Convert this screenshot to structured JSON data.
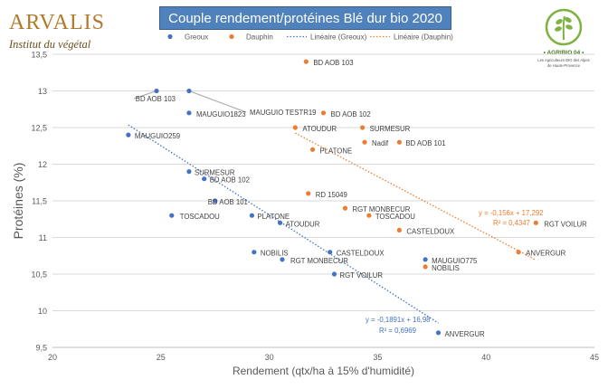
{
  "logo_left": {
    "name": "ARVALIS",
    "subtitle": "Institut du végétal"
  },
  "logo_right": {
    "name": "• AGRIBIO 04 •",
    "line1": "Les Agriculteurs BIO des Alpes",
    "line2": "de Haute-Provence"
  },
  "chart_data": {
    "type": "scatter",
    "title": "Couple rendement/protéines Blé dur bio 2020",
    "xlabel": "Rendement (qtx/ha à 15% d'humidité)",
    "ylabel": "Protéines (%)",
    "xlim": [
      20,
      45
    ],
    "ylim": [
      9.5,
      13.5
    ],
    "xticks": [
      20,
      25,
      30,
      35,
      40,
      45
    ],
    "yticks": [
      9.5,
      10,
      10.5,
      11,
      11.5,
      12,
      12.5,
      13,
      13.5
    ],
    "grid": "horizontal",
    "legend_position": "top",
    "colors": {
      "greoux": "#4472c4",
      "dauphin": "#ed7d31"
    },
    "legend": [
      "Greoux",
      "Dauphin",
      "Linéaire (Greoux)",
      "Linéaire (Dauphin)"
    ],
    "series": [
      {
        "name": "Greoux",
        "points": [
          {
            "label": "BD AOB 103",
            "x": 24.8,
            "y": 13.0
          },
          {
            "label": "MAUGUIO TESTR19",
            "x": 26.3,
            "y": 13.0
          },
          {
            "label": "MAUGUIO1823",
            "x": 26.3,
            "y": 12.7
          },
          {
            "label": "MAUGUIO259",
            "x": 23.5,
            "y": 12.4
          },
          {
            "label": "SURMESUR",
            "x": 26.3,
            "y": 11.9
          },
          {
            "label": "BD AOB 102",
            "x": 27.0,
            "y": 11.8
          },
          {
            "label": "BD AOB 101",
            "x": 27.5,
            "y": 11.5
          },
          {
            "label": "TOSCADOU",
            "x": 25.5,
            "y": 11.3
          },
          {
            "label": "PLATONE",
            "x": 29.2,
            "y": 11.3
          },
          {
            "label": "ATOUDUR",
            "x": 30.5,
            "y": 11.2
          },
          {
            "label": "NOBILIS",
            "x": 29.3,
            "y": 10.8
          },
          {
            "label": "CASTELDOUX",
            "x": 32.8,
            "y": 10.8
          },
          {
            "label": "RGT MONBECUR",
            "x": 30.6,
            "y": 10.7
          },
          {
            "label": "RGT VOILUR",
            "x": 33.0,
            "y": 10.5
          },
          {
            "label": "MAUGUIO775",
            "x": 37.2,
            "y": 10.7
          },
          {
            "label": "ANVERGUR",
            "x": 37.8,
            "y": 9.7
          }
        ]
      },
      {
        "name": "Dauphin",
        "points": [
          {
            "label": "BD AOB 103",
            "x": 31.7,
            "y": 13.4
          },
          {
            "label": "BD AOB 102",
            "x": 32.5,
            "y": 12.7
          },
          {
            "label": "ATOUDUR",
            "x": 31.2,
            "y": 12.5
          },
          {
            "label": "SURMESUR",
            "x": 34.3,
            "y": 12.5
          },
          {
            "label": "Nadif",
            "x": 34.4,
            "y": 12.3
          },
          {
            "label": "BD AOB 101",
            "x": 36.0,
            "y": 12.3
          },
          {
            "label": "PLATONE",
            "x": 32.0,
            "y": 12.2
          },
          {
            "label": "RD 15049",
            "x": 31.8,
            "y": 11.6
          },
          {
            "label": "RGT MONBECUR",
            "x": 33.5,
            "y": 11.4
          },
          {
            "label": "TOSCADOU",
            "x": 34.6,
            "y": 11.3
          },
          {
            "label": "CASTELDOUX",
            "x": 36.0,
            "y": 11.1
          },
          {
            "label": "NOBILIS",
            "x": 37.2,
            "y": 10.6
          },
          {
            "label": "RGT VOILUR",
            "x": 42.3,
            "y": 11.2
          },
          {
            "label": "ANVERGUR",
            "x": 41.5,
            "y": 10.8
          }
        ]
      }
    ],
    "trendlines": [
      {
        "name": "Linéaire (Greoux)",
        "slope": -0.1891,
        "intercept": 16.98,
        "x_range": [
          23.5,
          37.8
        ],
        "equation": "y = -0,1891x + 16,98",
        "r2": "R² = 0,6969"
      },
      {
        "name": "Linéaire (Dauphin)",
        "slope": -0.156,
        "intercept": 17.292,
        "x_range": [
          31.2,
          42.3
        ],
        "equation": "y = -0,156x + 17,292",
        "r2": "R² = 0,4347"
      }
    ]
  }
}
